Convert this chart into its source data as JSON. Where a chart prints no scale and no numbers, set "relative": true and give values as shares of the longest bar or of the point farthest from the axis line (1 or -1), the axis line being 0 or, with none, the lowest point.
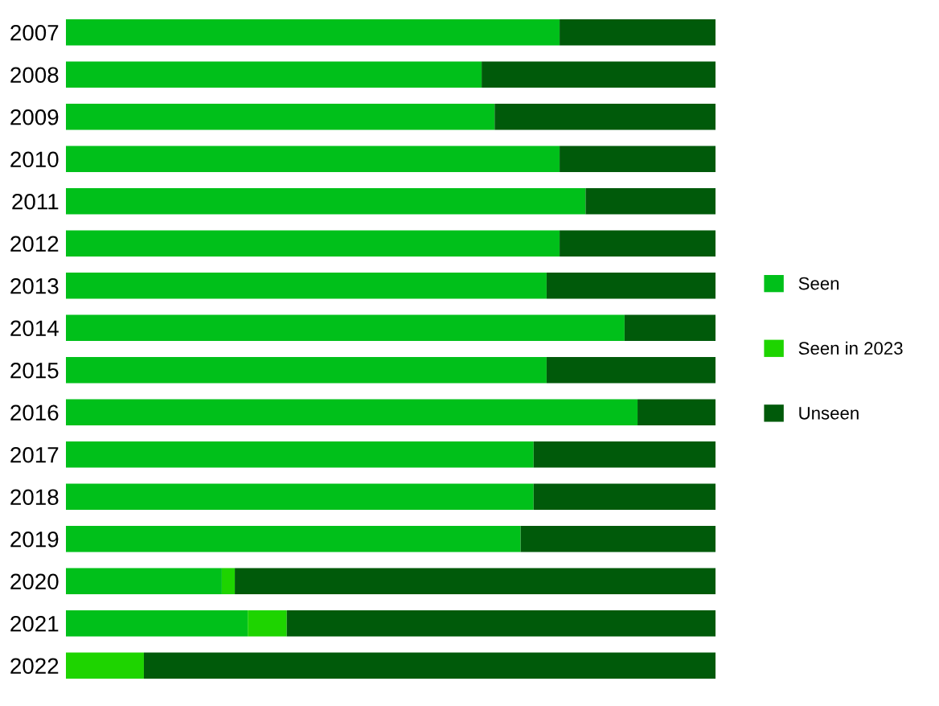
{
  "chart_data": {
    "type": "bar",
    "orientation": "horizontal",
    "stacked": true,
    "relative": true,
    "legend": "right",
    "categories": [
      "2007",
      "2008",
      "2009",
      "2010",
      "2011",
      "2012",
      "2013",
      "2014",
      "2015",
      "2016",
      "2017",
      "2018",
      "2019",
      "2020",
      "2021",
      "2022"
    ],
    "series": [
      {
        "name": "Seen",
        "color": "#00c01a",
        "values": [
          0.76,
          0.64,
          0.66,
          0.76,
          0.8,
          0.76,
          0.74,
          0.86,
          0.74,
          0.88,
          0.72,
          0.72,
          0.7,
          0.24,
          0.28,
          0
        ]
      },
      {
        "name": "Seen in 2023",
        "color": "#1ed400",
        "values": [
          0,
          0,
          0,
          0,
          0,
          0,
          0,
          0,
          0,
          0,
          0,
          0,
          0,
          0.02,
          0.06,
          0.12
        ]
      },
      {
        "name": "Unseen",
        "color": "#005a0a",
        "values": [
          0.24,
          0.36,
          0.34,
          0.24,
          0.2,
          0.24,
          0.26,
          0.14,
          0.26,
          0.12,
          0.28,
          0.28,
          0.3,
          0.74,
          0.66,
          0.88
        ]
      }
    ]
  }
}
